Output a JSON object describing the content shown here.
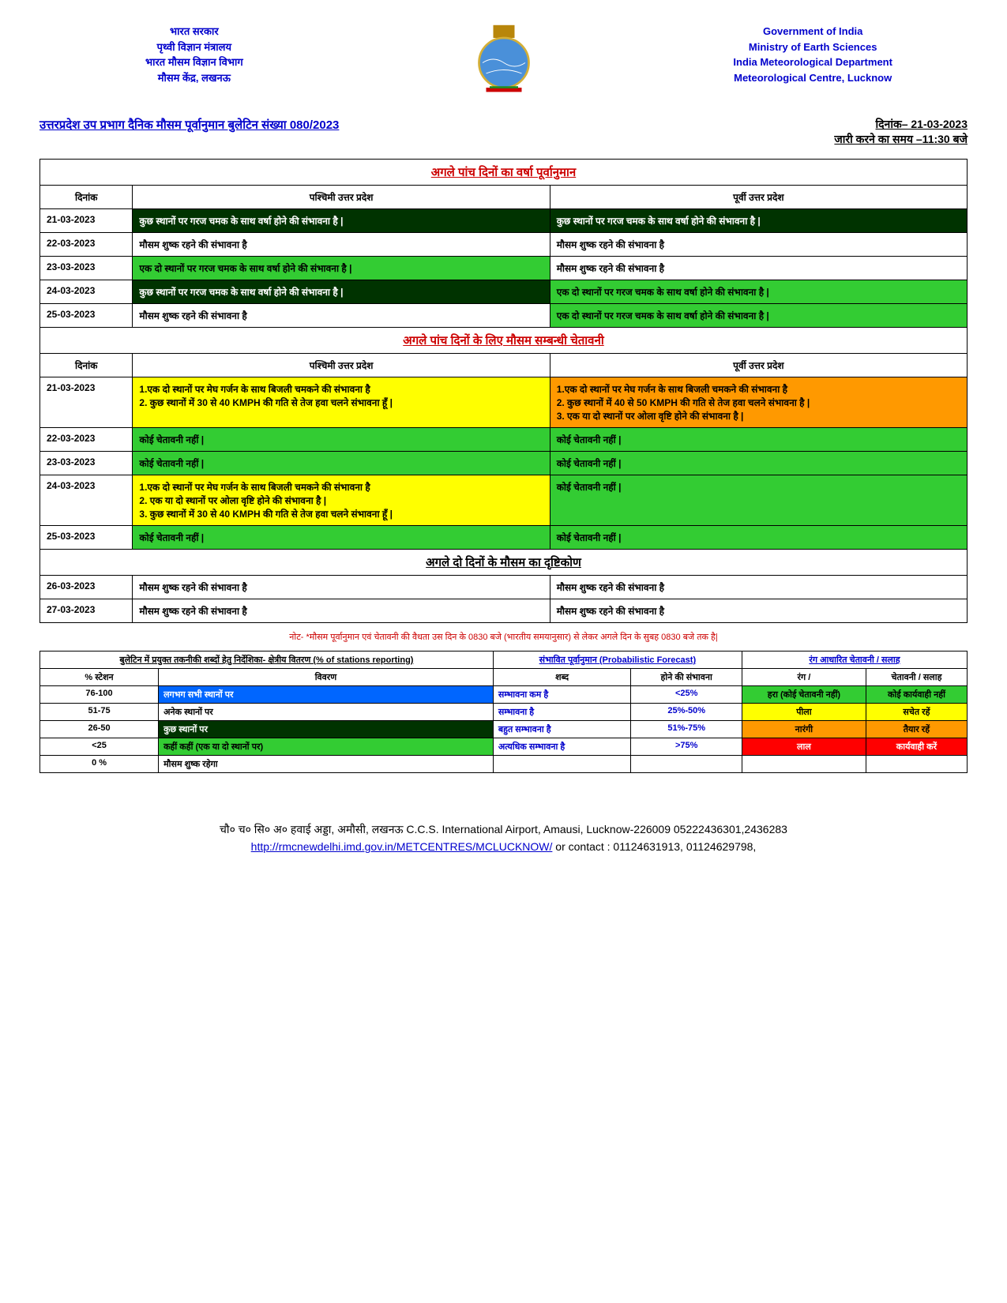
{
  "header": {
    "hindi": "भारत सरकार\nपृथ्वी विज्ञान मंत्रालय\nभारत मौसम विज्ञान विभाग\nमौसम केंद्र, लखनऊ",
    "english": "Government of India\nMinistry of Earth Sciences\nIndia Meteorological Department\nMeteorological Centre, Lucknow"
  },
  "bulletin": {
    "title": "उत्तरप्रदेश उप प्रभाग दैनिक मौसम पूर्वानुमान बुलेटिन संख्या 080/2023",
    "date_label": "दिनांक– 21-03-2023",
    "time_label": "जारी करने का समय –11:30 बजे"
  },
  "forecast": {
    "heading": "अगले पांच दिनों का वर्षा पूर्वानुमान",
    "date_col": "दिनांक",
    "west_col": "पश्चिमी उत्तर प्रदेश",
    "east_col": "पूर्वी उत्तर प्रदेश",
    "rows": [
      {
        "date": "21-03-2023",
        "west": "कुछ स्थानों पर गरज चमक के साथ वर्षा होने  की संभावना है |",
        "west_cls": "dark-green",
        "east": "कुछ स्थानों पर गरज चमक के साथ वर्षा होने  की संभावना है |",
        "east_cls": "dark-green"
      },
      {
        "date": "22-03-2023",
        "west": "मौसम शुष्क रहने  की संभावना है",
        "west_cls": "white",
        "east": "मौसम शुष्क रहने  की संभावना है",
        "east_cls": "white"
      },
      {
        "date": "23-03-2023",
        "west": "एक दो स्थानों पर गरज चमक के साथ वर्षा होने  की संभावना है |",
        "west_cls": "green",
        "east": "मौसम शुष्क रहने  की संभावना है",
        "east_cls": "white"
      },
      {
        "date": "24-03-2023",
        "west": "कुछ स्थानों पर गरज चमक के साथ वर्षा होने  की संभावना है |",
        "west_cls": "dark-green",
        "east": "एक दो स्थानों पर गरज चमक के साथ वर्षा होने  की संभावना है |",
        "east_cls": "green"
      },
      {
        "date": "25-03-2023",
        "west": "मौसम शुष्क रहने  की संभावना है",
        "west_cls": "white",
        "east": "एक दो स्थानों पर गरज चमक के साथ वर्षा होने  की संभावना है |",
        "east_cls": "green"
      }
    ]
  },
  "warning": {
    "heading": "अगले पांच दिनों  के लिए मौसम सम्बन्धी चेतावनी",
    "rows": [
      {
        "date": "21-03-2023",
        "west": "1.एक दो स्थानों पर मेघ गर्जन के साथ बिजली चमकने  की संभावना है\n2. कुछ स्थानों में 30 से 40 KMPH की गति से तेज  हवा चलने संभावना हूँ |",
        "west_cls": "yellow",
        "east": "1.एक दो स्थानों पर मेघ गर्जन के साथ बिजली चमकने  की संभावना है\n2. कुछ स्थानों में 40 से 50 KMPH की गति से तेज  हवा चलने संभावना है |\n3. एक या दो स्थानों पर ओला वृष्टि होने की संभावना है |",
        "east_cls": "orange"
      },
      {
        "date": "22-03-2023",
        "west": "कोई चेतावनी नहीं |",
        "west_cls": "green",
        "east": "कोई चेतावनी नहीं |",
        "east_cls": "green"
      },
      {
        "date": "23-03-2023",
        "west": "कोई चेतावनी नहीं |",
        "west_cls": "green",
        "east": "कोई चेतावनी नहीं |",
        "east_cls": "green"
      },
      {
        "date": "24-03-2023",
        "west": "1.एक दो स्थानों पर मेघ गर्जन के साथ बिजली चमकने  की संभावना है\n2. एक या दो स्थानों पर ओला वृष्टि होने की संभावना है |\n3. कुछ स्थानों में 30 से 40 KMPH की गति से तेज  हवा चलने संभावना हूँ |",
        "west_cls": "yellow",
        "east": "कोई चेतावनी नहीं |",
        "east_cls": "green"
      },
      {
        "date": "25-03-2023",
        "west": "कोई चेतावनी नहीं |",
        "west_cls": "green",
        "east": "कोई चेतावनी नहीं |",
        "east_cls": "green"
      }
    ]
  },
  "outlook": {
    "heading": "अगले दो  दिनों  के  मौसम का  दृष्टिकोण",
    "rows": [
      {
        "date": "26-03-2023",
        "west": "मौसम शुष्क रहने  की संभावना है",
        "east": "मौसम शुष्क रहने  की संभावना है"
      },
      {
        "date": "27-03-2023",
        "west": "मौसम शुष्क रहने  की संभावना है",
        "east": "मौसम शुष्क रहने  की संभावना है"
      }
    ]
  },
  "note": "नोट-  *मौसम पूर्वानुमान एवं चेतावनी की वैधता उस दिन के 0830 बजे (भारतीय समयानुसार) से लेकर अगले दिन के सुबह 0830 बजे तक है|",
  "legend": {
    "dist_header": "बुलेटिन  में प्रयुक्त तकनीकी शब्दों हेतु निर्देशिका- क्षेत्रीय वितरण (% of stations reporting)",
    "prob_header": "संभावित पूर्वानुमान (Probabilistic Forecast)",
    "color_header": "रंग आधारित चेतावनी / सलाह",
    "pct_label": "% स्टेशन",
    "desc_label": "विवरण",
    "word_label": "शब्द",
    "chance_label": "होने की संभावना",
    "color_label": "रंग /",
    "warn_label": "चेतावनी / सलाह",
    "rows": [
      {
        "pct": "76-100",
        "desc": "लगभग सभी स्थानों पर",
        "desc_cls": "blue",
        "word": "सम्भावना कम है",
        "prob": "<25%",
        "color": "हरा (कोई चेतावनी नहीं)",
        "color_cls": "green",
        "warn": "कोई कार्यवाही नहीं",
        "warn_cls": "green"
      },
      {
        "pct": "51-75",
        "desc": "अनेक स्थानों पर",
        "desc_cls": "white",
        "word": "सम्भावना है",
        "prob": "25%-50%",
        "color": "पीला",
        "color_cls": "yellow",
        "warn": "सचेत रहें",
        "warn_cls": "yellow"
      },
      {
        "pct": "26-50",
        "desc": "कुछ स्थानों पर",
        "desc_cls": "dark-green",
        "word": "बहुत सम्भावना है",
        "prob": "51%-75%",
        "color": "नारंगी",
        "color_cls": "orange",
        "warn": "तैयार रहें",
        "warn_cls": "orange"
      },
      {
        "pct": "<25",
        "desc": "कहीं  कहीं  (एक या दो स्थानों पर)",
        "desc_cls": "green",
        "word": "अत्यधिक सम्भावना है",
        "prob": ">75%",
        "color": "लाल",
        "color_cls": "red",
        "warn": "कार्यवाही करें",
        "warn_cls": "red"
      },
      {
        "pct": "0 %",
        "desc": "मौसम शुष्क रहेगा",
        "desc_cls": "white",
        "word": "",
        "prob": "",
        "color": "",
        "color_cls": "",
        "warn": "",
        "warn_cls": ""
      }
    ]
  },
  "footer": {
    "line1": "चौ० च० सि० अ० हवाई अड्डा, अमौसी, लखनऊ C.C.S. International Airport, Amausi, Lucknow-226009 05222436301,2436283",
    "link": "http://rmcnewdelhi.imd.gov.in/METCENTRES/MCLUCKNOW/",
    "line2": " or contact :  01124631913, 01124629798,"
  }
}
